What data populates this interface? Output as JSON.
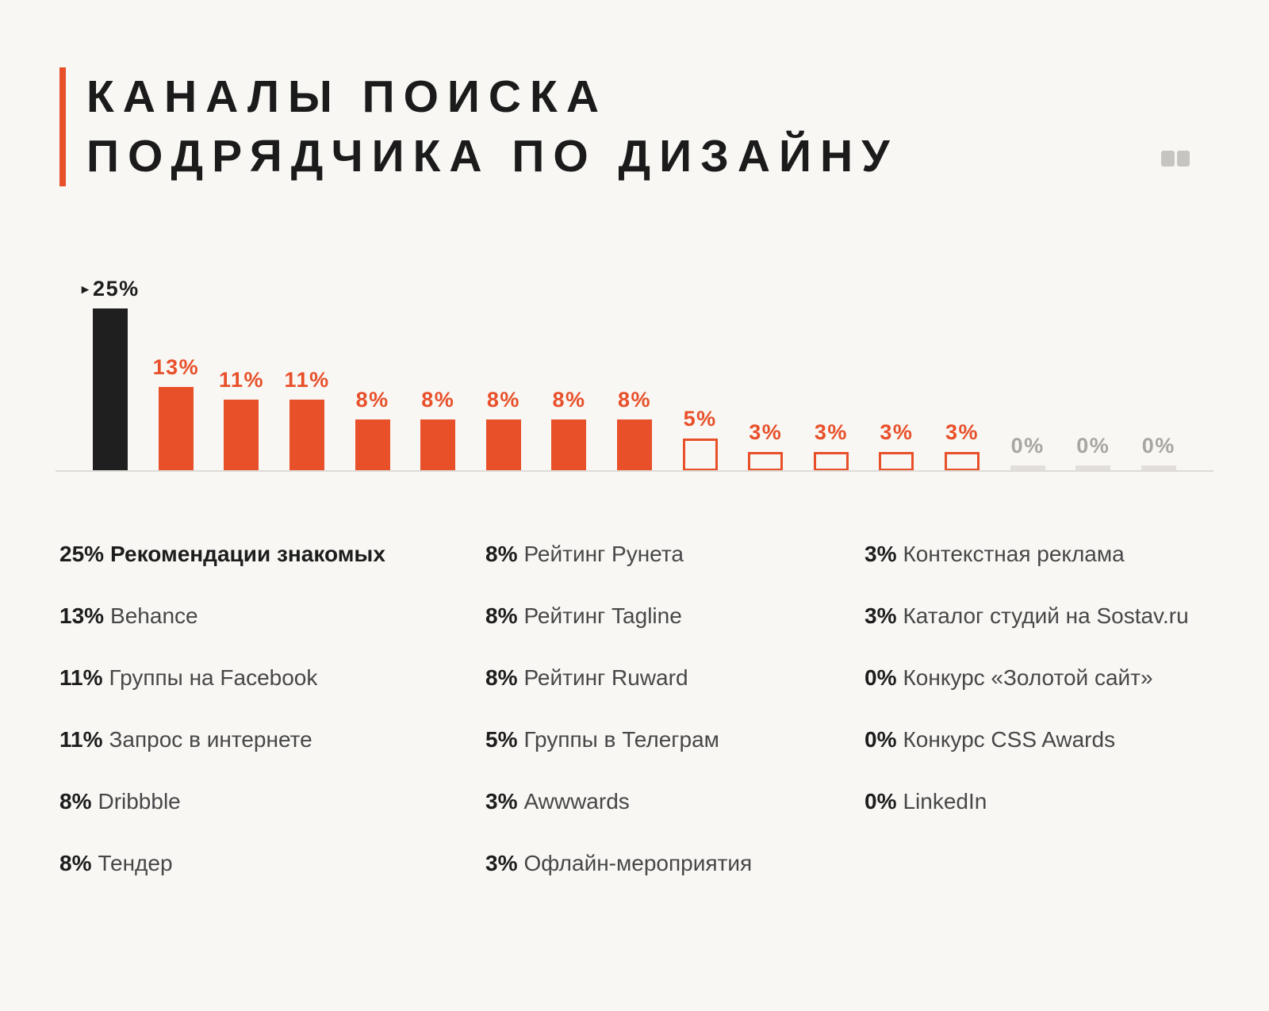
{
  "header": {
    "title_line1": "КАНАЛЫ ПОИСКА",
    "title_line2": "ПОДРЯДЧИКА ПО ДИЗАЙНУ",
    "accent_color": "#e8502a"
  },
  "colors": {
    "orange": "#e8502a",
    "black_bar": "#1f1f1f",
    "zero_gray": "#a9a5a0",
    "background": "#f8f7f4"
  },
  "chart_data": {
    "type": "bar",
    "title": "Каналы поиска подрядчика по дизайну",
    "unit": "%",
    "ylim": [
      0,
      25
    ],
    "grid": false,
    "legend_position": "bottom",
    "legend_split": [
      6,
      6,
      5
    ],
    "items": [
      {
        "label": "Рекомендации знакомых",
        "value": 25,
        "style": "black"
      },
      {
        "label": "Behance",
        "value": 13,
        "style": "filled"
      },
      {
        "label": "Группы на Facebook",
        "value": 11,
        "style": "filled"
      },
      {
        "label": "Запрос в интернете",
        "value": 11,
        "style": "filled"
      },
      {
        "label": "Dribbble",
        "value": 8,
        "style": "filled"
      },
      {
        "label": "Тендер",
        "value": 8,
        "style": "filled"
      },
      {
        "label": "Рейтинг Рунета",
        "value": 8,
        "style": "filled"
      },
      {
        "label": "Рейтинг Tagline",
        "value": 8,
        "style": "filled"
      },
      {
        "label": "Рейтинг Ruward",
        "value": 8,
        "style": "filled"
      },
      {
        "label": "Группы в Телеграм",
        "value": 5,
        "style": "outline"
      },
      {
        "label": "Awwwards",
        "value": 3,
        "style": "outline"
      },
      {
        "label": "Офлайн-мероприятия",
        "value": 3,
        "style": "outline"
      },
      {
        "label": "Контекстная реклама",
        "value": 3,
        "style": "outline"
      },
      {
        "label": "Каталог студий на Sostav.ru",
        "value": 3,
        "style": "outline"
      },
      {
        "label": "Конкурс «Золотой сайт»",
        "value": 0,
        "style": "zero"
      },
      {
        "label": "Конкурс CSS Awards",
        "value": 0,
        "style": "zero"
      },
      {
        "label": "LinkedIn",
        "value": 0,
        "style": "zero"
      }
    ]
  }
}
